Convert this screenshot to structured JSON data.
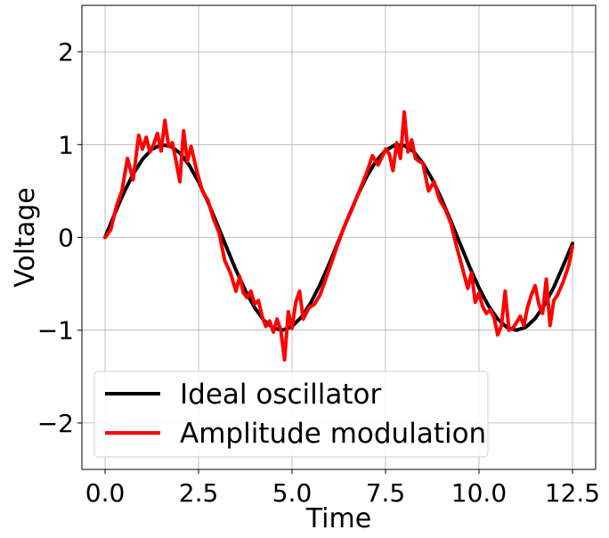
{
  "chart_data": {
    "type": "line",
    "title": "",
    "xlabel": "Time",
    "ylabel": "Voltage",
    "xlim": [
      -0.62,
      13.12
    ],
    "ylim": [
      -2.5,
      2.5
    ],
    "xticks": [
      0.0,
      2.5,
      5.0,
      7.5,
      10.0,
      12.5
    ],
    "xtick_labels": [
      "0.0",
      "2.5",
      "5.0",
      "7.5",
      "10.0",
      "12.5"
    ],
    "yticks": [
      -2,
      -1,
      0,
      1,
      2
    ],
    "ytick_labels": [
      "−2",
      "−1",
      "0",
      "1",
      "2"
    ],
    "grid": true,
    "legend_position": "lower-left",
    "series": [
      {
        "name": "Ideal oscillator",
        "color": "#000000",
        "x": [
          0.0,
          0.25,
          0.5,
          0.75,
          1.0,
          1.25,
          1.5,
          1.75,
          2.0,
          2.25,
          2.5,
          2.75,
          3.0,
          3.25,
          3.5,
          3.75,
          4.0,
          4.25,
          4.5,
          4.75,
          5.0,
          5.25,
          5.5,
          5.75,
          6.0,
          6.25,
          6.5,
          6.75,
          7.0,
          7.25,
          7.5,
          7.75,
          8.0,
          8.25,
          8.5,
          8.75,
          9.0,
          9.25,
          9.5,
          9.75,
          10.0,
          10.25,
          10.5,
          10.75,
          11.0,
          11.25,
          11.5,
          11.75,
          12.0,
          12.25,
          12.5
        ],
        "values": [
          0.0,
          0.247,
          0.479,
          0.682,
          0.841,
          0.949,
          0.997,
          0.984,
          0.909,
          0.778,
          0.598,
          0.381,
          0.141,
          -0.108,
          -0.351,
          -0.572,
          -0.757,
          -0.895,
          -0.978,
          -0.999,
          -0.959,
          -0.859,
          -0.706,
          -0.508,
          -0.279,
          -0.033,
          0.215,
          0.45,
          0.657,
          0.823,
          0.938,
          0.994,
          0.989,
          0.925,
          0.798,
          0.625,
          0.412,
          0.174,
          -0.075,
          -0.319,
          -0.544,
          -0.734,
          -0.88,
          -0.971,
          -1.0,
          -0.968,
          -0.875,
          -0.727,
          -0.537,
          -0.306,
          -0.066
        ]
      },
      {
        "name": "Amplitude modulation",
        "color": "#ff0000",
        "x": [
          0.0,
          0.15,
          0.3,
          0.45,
          0.6,
          0.75,
          0.9,
          1.0,
          1.1,
          1.2,
          1.3,
          1.4,
          1.5,
          1.6,
          1.7,
          1.8,
          1.9,
          2.0,
          2.1,
          2.2,
          2.3,
          2.45,
          2.6,
          2.75,
          2.9,
          3.05,
          3.2,
          3.35,
          3.5,
          3.6,
          3.7,
          3.8,
          3.9,
          4.0,
          4.1,
          4.2,
          4.3,
          4.4,
          4.5,
          4.6,
          4.7,
          4.8,
          4.9,
          5.0,
          5.1,
          5.2,
          5.3,
          5.45,
          5.6,
          5.75,
          5.9,
          6.05,
          6.2,
          6.4,
          6.6,
          6.8,
          7.0,
          7.15,
          7.3,
          7.4,
          7.5,
          7.6,
          7.7,
          7.8,
          7.9,
          8.0,
          8.1,
          8.2,
          8.3,
          8.4,
          8.5,
          8.65,
          8.8,
          8.95,
          9.1,
          9.25,
          9.4,
          9.55,
          9.7,
          9.8,
          9.9,
          10.0,
          10.1,
          10.2,
          10.3,
          10.4,
          10.5,
          10.6,
          10.7,
          10.8,
          10.9,
          11.0,
          11.1,
          11.2,
          11.3,
          11.4,
          11.5,
          11.6,
          11.7,
          11.8,
          11.9,
          12.0,
          12.1,
          12.25,
          12.4,
          12.5
        ],
        "values": [
          0.0,
          0.08,
          0.33,
          0.5,
          0.85,
          0.62,
          1.1,
          0.95,
          1.08,
          0.92,
          1.0,
          1.12,
          0.93,
          1.26,
          0.98,
          1.02,
          0.82,
          0.6,
          1.15,
          0.82,
          0.98,
          0.72,
          0.5,
          0.4,
          0.2,
          0.05,
          -0.25,
          -0.38,
          -0.58,
          -0.42,
          -0.6,
          -0.65,
          -0.58,
          -0.72,
          -0.68,
          -0.85,
          -0.96,
          -0.9,
          -1.02,
          -0.88,
          -1.0,
          -1.32,
          -0.8,
          -0.98,
          -0.7,
          -0.58,
          -0.88,
          -0.76,
          -0.72,
          -0.62,
          -0.45,
          -0.28,
          -0.1,
          0.12,
          0.3,
          0.5,
          0.7,
          0.88,
          0.78,
          0.86,
          0.95,
          0.9,
          0.72,
          1.02,
          0.85,
          1.35,
          0.92,
          1.05,
          0.85,
          0.82,
          0.8,
          0.5,
          0.6,
          0.4,
          0.3,
          0.15,
          -0.1,
          -0.32,
          -0.55,
          -0.38,
          -0.7,
          -0.6,
          -0.75,
          -0.82,
          -0.78,
          -0.86,
          -1.05,
          -0.95,
          -0.58,
          -1.0,
          -0.98,
          -0.92,
          -0.85,
          -0.95,
          -0.75,
          -0.62,
          -0.52,
          -0.72,
          -0.82,
          -0.45,
          -0.95,
          -0.68,
          -0.62,
          -0.48,
          -0.3,
          -0.1
        ]
      }
    ]
  }
}
